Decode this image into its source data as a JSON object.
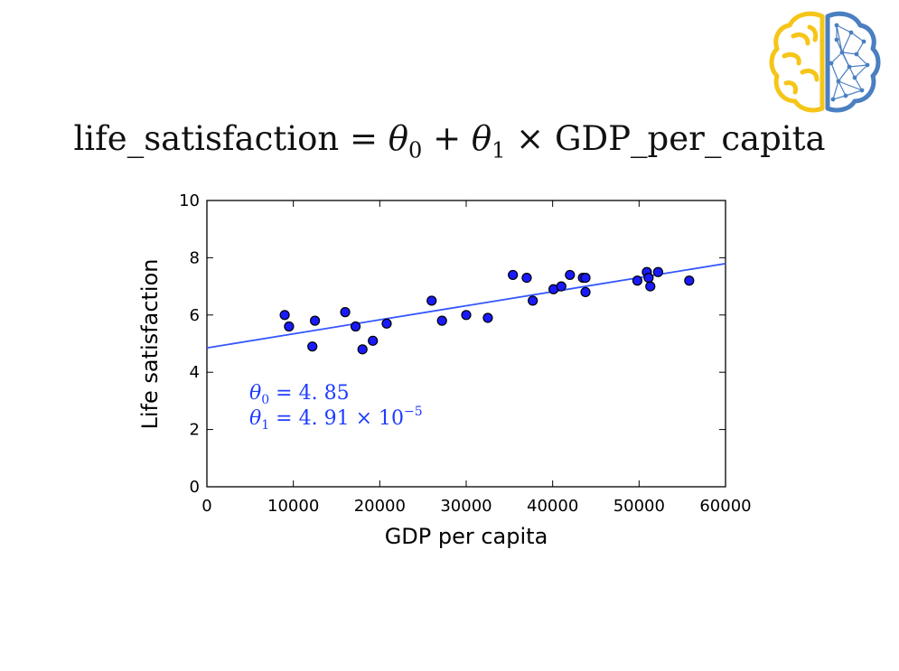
{
  "slide": {
    "equation": {
      "lhs": "life_satisfaction",
      "eq": " = ",
      "theta": "θ",
      "sub0": "0",
      "plus": " + ",
      "sub1": "1",
      "times": " × ",
      "rhs": "GDP_per_capita"
    }
  },
  "logo": {
    "icon": "brain-network-logo",
    "colors": {
      "left": "#f5c518",
      "right": "#4a7fc1"
    }
  },
  "chart_data": {
    "type": "scatter",
    "xlabel": "GDP per capita",
    "ylabel": "Life satisfaction",
    "xlim": [
      0,
      60000
    ],
    "ylim": [
      0,
      10
    ],
    "xticks": [
      0,
      10000,
      20000,
      30000,
      40000,
      50000,
      60000
    ],
    "yticks": [
      0,
      2,
      4,
      6,
      8,
      10
    ],
    "grid": false,
    "colors": {
      "points": "#1a1aff",
      "point_edge": "#000000",
      "line": "#3355ff",
      "annotation": "#1f3cff"
    },
    "points": [
      [
        9000,
        6.0
      ],
      [
        9500,
        5.6
      ],
      [
        12200,
        4.9
      ],
      [
        12500,
        5.8
      ],
      [
        16000,
        6.1
      ],
      [
        17200,
        5.6
      ],
      [
        18000,
        4.8
      ],
      [
        19200,
        5.1
      ],
      [
        20800,
        5.7
      ],
      [
        26000,
        6.5
      ],
      [
        27200,
        5.8
      ],
      [
        30000,
        6.0
      ],
      [
        32500,
        5.9
      ],
      [
        35400,
        7.4
      ],
      [
        37000,
        7.3
      ],
      [
        37700,
        6.5
      ],
      [
        40100,
        6.9
      ],
      [
        41000,
        7.0
      ],
      [
        42000,
        7.4
      ],
      [
        43500,
        7.3
      ],
      [
        43800,
        7.3
      ],
      [
        43800,
        6.8
      ],
      [
        49800,
        7.2
      ],
      [
        50900,
        7.5
      ],
      [
        51100,
        7.3
      ],
      [
        51300,
        7.0
      ],
      [
        52200,
        7.5
      ],
      [
        55800,
        7.2
      ]
    ],
    "fit_line": {
      "theta0": 4.85,
      "theta1": 4.91e-05
    },
    "annotations": {
      "line0": {
        "theta": "θ",
        "sub": "0",
        "text": " = 4. 85"
      },
      "line1": {
        "theta": "θ",
        "sub": "1",
        "text": " = 4. 91 × 10",
        "exp": "−5"
      }
    }
  }
}
